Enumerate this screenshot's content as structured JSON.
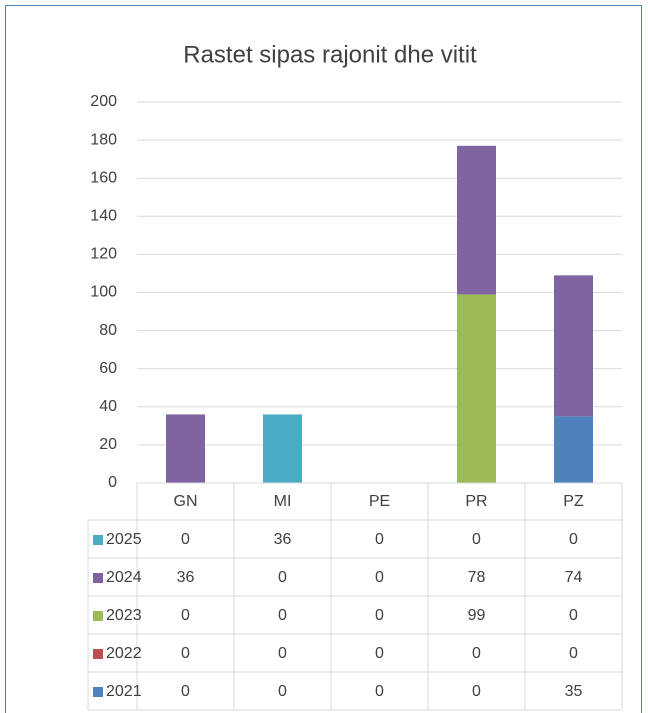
{
  "chart_data": {
    "type": "stacked_bar",
    "title": "Rastet sipas rajonit dhe vitit",
    "categories": [
      "GN",
      "MI",
      "PE",
      "PR",
      "PZ"
    ],
    "series": [
      {
        "name": "2025",
        "color": "#4bacc6",
        "values": [
          0,
          36,
          0,
          0,
          0
        ]
      },
      {
        "name": "2024",
        "color": "#8064a2",
        "values": [
          36,
          0,
          0,
          78,
          74
        ]
      },
      {
        "name": "2023",
        "color": "#9bbb59",
        "values": [
          0,
          0,
          0,
          99,
          0
        ]
      },
      {
        "name": "2022",
        "color": "#c0504d",
        "values": [
          0,
          0,
          0,
          0,
          0
        ]
      },
      {
        "name": "2021",
        "color": "#4f81bd",
        "values": [
          0,
          0,
          0,
          0,
          35
        ]
      }
    ],
    "ylim": [
      0,
      200
    ],
    "yticks": [
      0,
      20,
      40,
      60,
      80,
      100,
      120,
      140,
      160,
      180,
      200
    ],
    "grid": true
  }
}
